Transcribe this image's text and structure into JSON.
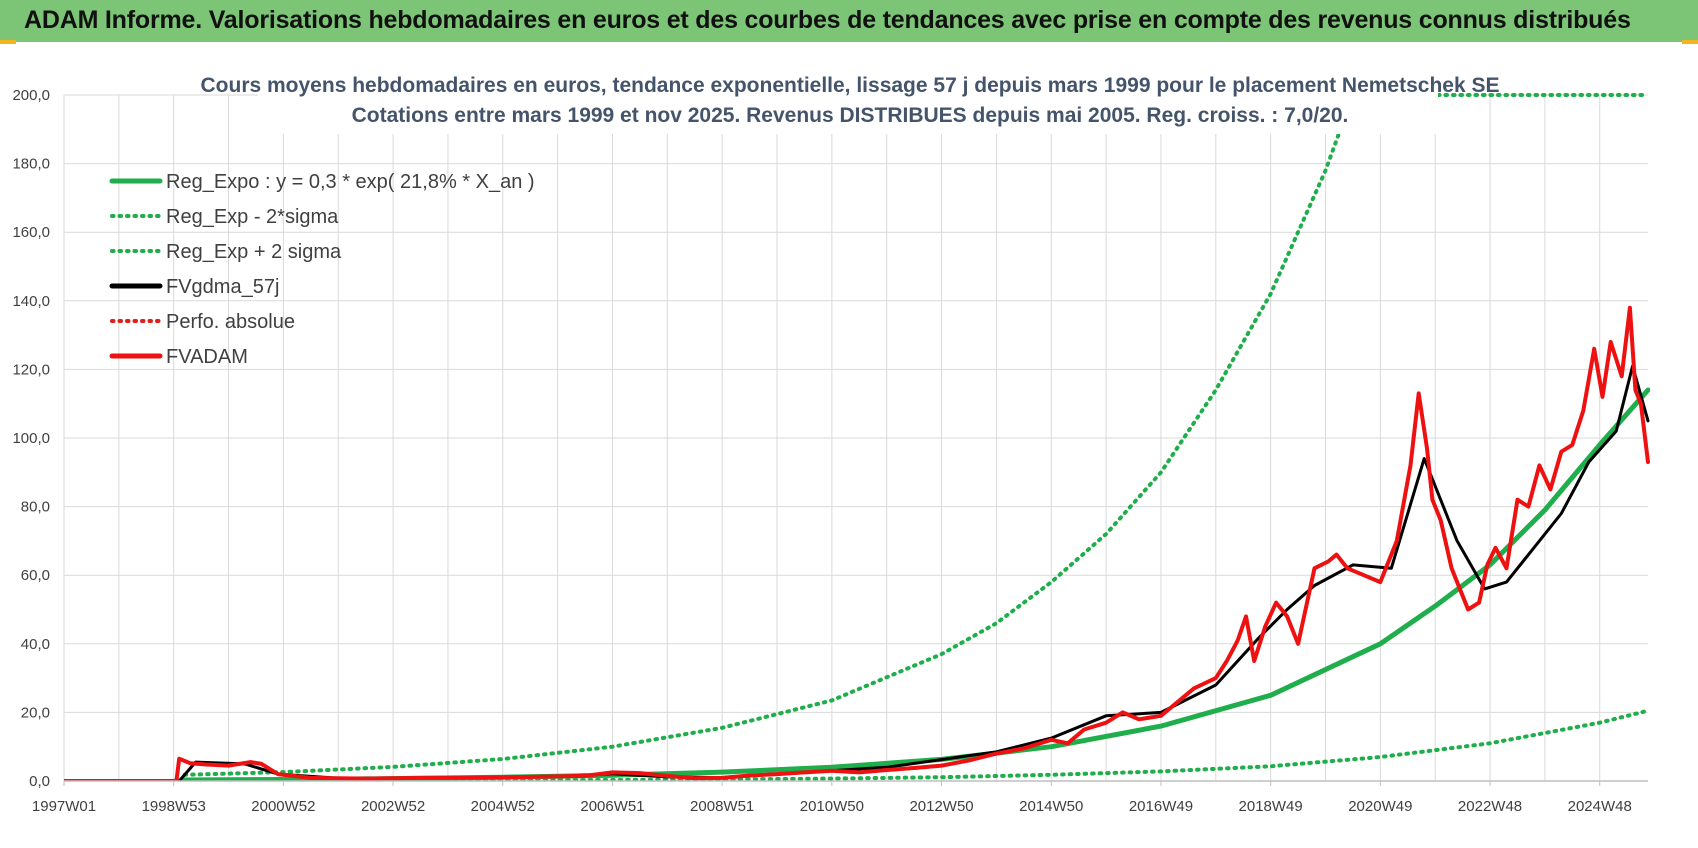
{
  "header": {
    "title": "ADAM Informe. Valorisations hebdomadaires en euros et des courbes de tendances avec prise en compte des revenus connus distribués"
  },
  "colors": {
    "header_bg": "#7cc576",
    "reg_expo": "#1fae4b",
    "sigma_bands": "#1fae4b",
    "fvgdma": "#000000",
    "perfo_absolue": "#e0201b",
    "fvadam": "#ee1111",
    "grid": "#d9d9d9"
  },
  "chart_data": {
    "type": "line",
    "title_line1": "Cours moyens  hebdomadaires en euros, tendance exponentielle, lissage 57 j depuis mars 1999 pour le placement Nemetschek SE",
    "title_line2": "Cotations entre mars 1999 et nov 2025. Revenus DISTRIBUES depuis mai 2005. Reg. croiss. : 7,0/20.",
    "x_tick_labels": [
      "1997W01",
      "1998W53",
      "2000W52",
      "2002W52",
      "2004W52",
      "2006W51",
      "2008W51",
      "2010W50",
      "2012W50",
      "2014W50",
      "2016W49",
      "2018W49",
      "2020W49",
      "2022W48",
      "2024W48"
    ],
    "x_ticks": [
      1997.0,
      1999.0,
      2001.0,
      2003.0,
      2005.0,
      2007.0,
      2009.0,
      2011.0,
      2013.0,
      2015.0,
      2017.0,
      2019.0,
      2021.0,
      2023.0,
      2025.0
    ],
    "xlim": [
      1997.0,
      2025.88
    ],
    "ylim": [
      0,
      200
    ],
    "y_ticks": [
      0,
      20,
      40,
      60,
      80,
      100,
      120,
      140,
      160,
      180,
      200
    ],
    "y_tick_labels": [
      "0,0",
      "20,0",
      "40,0",
      "60,0",
      "80,0",
      "100,0",
      "120,0",
      "140,0",
      "160,0",
      "180,0",
      "200,0"
    ],
    "grid": true,
    "legend_position": "top-left",
    "series": [
      {
        "name": "Reg_Expo : y = 0,3 * exp( 21,8% *  X_an )",
        "style": "solid",
        "color": "#1fae4b",
        "width": 5,
        "x": [
          1999.2,
          2001,
          2003,
          2005,
          2007,
          2009,
          2011,
          2013,
          2015,
          2017,
          2019,
          2021,
          2022,
          2023,
          2024,
          2025,
          2025.88
        ],
        "y": [
          0.3,
          0.45,
          0.7,
          1.1,
          1.7,
          2.6,
          4.0,
          6.3,
          10.0,
          16.0,
          25.0,
          40.0,
          51.0,
          63.0,
          79.0,
          98.0,
          114.0
        ]
      },
      {
        "name": "Reg_Exp - 2*sigma",
        "style": "dotted",
        "color": "#1fae4b",
        "width": 4,
        "x": [
          1999.2,
          2001,
          2003,
          2005,
          2007,
          2009,
          2011,
          2013,
          2015,
          2017,
          2019,
          2021,
          2023,
          2025,
          2025.88
        ],
        "y": [
          0.1,
          0.1,
          0.1,
          0.2,
          0.3,
          0.45,
          0.7,
          1.1,
          1.8,
          2.8,
          4.3,
          7.0,
          11.0,
          17.0,
          20.5
        ]
      },
      {
        "name": "Reg_Exp + 2 sigma",
        "style": "dotted",
        "color": "#1fae4b",
        "width": 4,
        "x": [
          1999.2,
          2001,
          2003,
          2005,
          2007,
          2009,
          2011,
          2013,
          2014,
          2015,
          2016,
          2017,
          2018,
          2019,
          2020,
          2021
        ],
        "y": [
          1.8,
          2.6,
          4.1,
          6.4,
          10.0,
          15.5,
          23.5,
          37.0,
          46.0,
          58.0,
          72.0,
          90.0,
          114.0,
          142.0,
          178.0,
          222.0
        ]
      },
      {
        "name": "FVgdma_57j",
        "style": "solid",
        "color": "#000000",
        "width": 3,
        "x": [
          1997.0,
          1999.1,
          1999.4,
          2000.3,
          2000.9,
          2002,
          2004,
          2006,
          2007,
          2008,
          2009,
          2010,
          2012,
          2014,
          2015,
          2016,
          2017,
          2018,
          2018.8,
          2019.3,
          2019.8,
          2020.5,
          2021.2,
          2021.8,
          2022.4,
          2022.9,
          2023.3,
          2023.8,
          2024.3,
          2024.8,
          2025.3,
          2025.6,
          2025.88
        ],
        "y": [
          0,
          0,
          5.5,
          5.0,
          2.0,
          0.8,
          0.9,
          1.3,
          2.1,
          1.2,
          1.0,
          2.0,
          4.0,
          8.5,
          12.5,
          19.0,
          20.0,
          28.0,
          42.0,
          50.0,
          57.0,
          63.0,
          62.0,
          94.0,
          70.0,
          56.0,
          58.0,
          68.0,
          78.0,
          93.0,
          102.0,
          121.0,
          105.0
        ]
      },
      {
        "name": "Perfo. absolue",
        "style": "dotted",
        "color": "#e0201b",
        "width": 3,
        "x": [],
        "y": []
      },
      {
        "name": "FVADAM",
        "style": "solid",
        "color": "#ee1111",
        "width": 4,
        "x": [
          1997.0,
          1999.05,
          1999.1,
          1999.3,
          1999.6,
          2000.0,
          2000.4,
          2000.6,
          2000.9,
          2001.5,
          2002.5,
          2003.5,
          2004.5,
          2005.5,
          2006.5,
          2007.0,
          2007.5,
          2008.0,
          2008.5,
          2009.0,
          2009.5,
          2010.0,
          2010.5,
          2011.0,
          2011.5,
          2012.0,
          2012.5,
          2013.0,
          2013.5,
          2014.0,
          2014.5,
          2015.0,
          2015.3,
          2015.6,
          2016.0,
          2016.3,
          2016.6,
          2017.0,
          2017.3,
          2017.6,
          2018.0,
          2018.2,
          2018.4,
          2018.55,
          2018.7,
          2018.9,
          2019.1,
          2019.3,
          2019.5,
          2019.8,
          2020.05,
          2020.2,
          2020.4,
          2020.7,
          2021.0,
          2021.3,
          2021.55,
          2021.7,
          2021.85,
          2021.95,
          2022.1,
          2022.3,
          2022.6,
          2022.8,
          2022.95,
          2023.1,
          2023.3,
          2023.5,
          2023.7,
          2023.9,
          2024.1,
          2024.3,
          2024.5,
          2024.7,
          2024.9,
          2025.05,
          2025.2,
          2025.4,
          2025.55,
          2025.65,
          2025.75,
          2025.88
        ],
        "y": [
          0,
          0,
          6.5,
          5.2,
          4.8,
          4.5,
          5.5,
          5.0,
          2.0,
          0.9,
          0.7,
          0.9,
          1.0,
          1.2,
          1.5,
          2.5,
          2.3,
          1.5,
          0.8,
          0.9,
          1.6,
          2.0,
          2.5,
          3.0,
          2.5,
          3.2,
          3.8,
          4.5,
          6.0,
          8.0,
          9.5,
          12.0,
          11.0,
          15.0,
          17.0,
          20.0,
          18.0,
          19.0,
          23.0,
          27.0,
          30.0,
          35.0,
          41.0,
          48.0,
          35.0,
          45.0,
          52.0,
          48.0,
          40.0,
          62.0,
          64.0,
          66.0,
          62.0,
          60.0,
          58.0,
          70.0,
          92.0,
          113.0,
          97.0,
          82.0,
          76.0,
          62.0,
          50.0,
          52.0,
          63.0,
          68.0,
          62.0,
          82.0,
          80.0,
          92.0,
          85.0,
          96.0,
          98.0,
          108.0,
          126.0,
          112.0,
          128.0,
          118.0,
          138.0,
          114.0,
          110.0,
          93.0
        ]
      }
    ]
  }
}
